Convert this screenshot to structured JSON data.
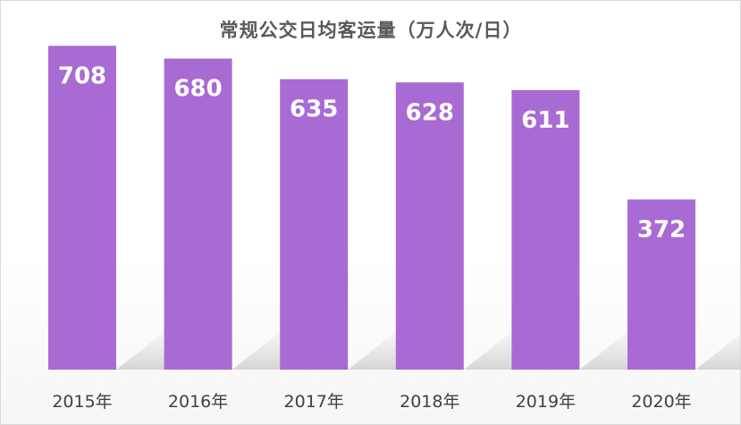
{
  "chart_data": {
    "type": "bar",
    "title": "常规公交日均客运量（万人次/日）",
    "categories": [
      "2015年",
      "2016年",
      "2017年",
      "2018年",
      "2019年",
      "2020年"
    ],
    "values": [
      708,
      680,
      635,
      628,
      611,
      372
    ],
    "xlabel": "",
    "ylabel": "",
    "ylim": [
      0,
      730
    ],
    "grid": false,
    "legend": "none",
    "data_labels": "inside-top",
    "colors": {
      "bar": "#a86bd3",
      "label": "#ffffff",
      "title": "#595959",
      "tick": "#404040"
    }
  }
}
